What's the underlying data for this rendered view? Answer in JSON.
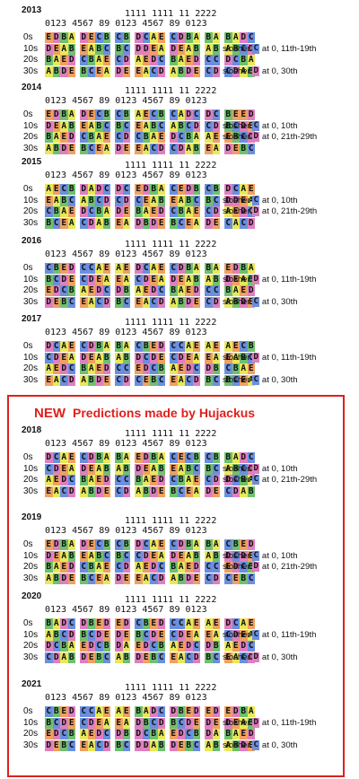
{
  "colors": {
    "A": "#e8e85a",
    "B": "#6fc06f",
    "C": "#6b8fe0",
    "D": "#e07fbf",
    "E": "#f0a060",
    "accent": "#e0201c"
  },
  "header": {
    "tens": "1111 1111 11 2222",
    "ones": "0123 4567 89 0123 4567 89 0123"
  },
  "row_labels": [
    "0s",
    "10s",
    "20s",
    "30s"
  ],
  "predictions": {
    "new_label": "NEW",
    "title": "Predictions made by Hujackus"
  },
  "years": [
    {
      "year": "2013",
      "rows": [
        "EDBA DECB CB DCAE CDBA BA BADC",
        "DEAB EABC BC DDEA DEAB AB ABCD",
        "BAED CBAE CD AEDC BAED CC DCBA",
        "ABDE BCEA DE EACD ABDE CD CDAB"
      ],
      "notes": [
        {
          "row": 1,
          "pre": "slosher",
          "key": "C",
          "post": "at 0, 11th-19th"
        },
        {
          "row": 3,
          "pre": "slosher",
          "key": "D",
          "post": "at 0, 30th"
        }
      ]
    },
    {
      "year": "2014",
      "rows": [
        "EDBA DECB CB AECB CADC DC BEED",
        "DEAB EABC BC EABC ABCD CD BCDE",
        "BAED CBAE CD CBAE DCBA AE EBCD",
        "ABDE BCEA DE EACD CDAB EA DEBC"
      ],
      "notes": [
        {
          "row": 1,
          "pre": "slosher",
          "key": "C",
          "post": "at 0, 10th"
        },
        {
          "row": 2,
          "pre": "slosher",
          "key": "D",
          "post": "at 0, 21th-29th"
        }
      ]
    },
    {
      "year": "2015",
      "rows": [
        "AECB DADC DC EDBA CEDB CB DCAE",
        "EABC ABCD CD CEAB EABC BC DDEA",
        "CBAE DCBA DE BAED CBAE CD AEDC",
        "BCEA CDAB EA DBDE BCEA DE CACD"
      ],
      "notes": [
        {
          "row": 1,
          "pre": "slosher",
          "key": "C",
          "post": "at 0, 10th"
        },
        {
          "row": 2,
          "pre": "slosher",
          "key": "D",
          "post": "at 0, 21th-29th"
        }
      ]
    },
    {
      "year": "2016",
      "rows": [
        "CBED CCAE AE DCAE CDBA BA EDBA",
        "BCDE CDEA EA CDEA DEAB AB DEAB",
        "EDCB AEDC DB AEDC BAED CC BAED",
        "DEBC EACD BC EACD ABDE CD ABDE"
      ],
      "notes": [
        {
          "row": 1,
          "pre": "slosher",
          "key": "D",
          "post": "at 0, 11th-19th"
        },
        {
          "row": 3,
          "pre": "slosher",
          "key": "C",
          "post": "at 0, 30th"
        }
      ]
    },
    {
      "year": "2017",
      "rows": [
        "DCAE CDBA BA CBED CCAE AE AECB",
        "CDEA DEAB AB DCDE CDEA EA EABC",
        "AEDC BAED CC EDCB AEDC DB CBAE",
        "EACD ABDE CD CEBC EACD BC BCEA"
      ],
      "notes": [
        {
          "row": 1,
          "pre": "slosher",
          "key": "D",
          "post": "at 0, 11th-19th"
        },
        {
          "row": 3,
          "pre": "slosher",
          "key": "C",
          "post": "at 0, 30th"
        }
      ]
    },
    {
      "year": "2018",
      "rows": [
        "DCAE CDBA BA EDBA CECB CB BADC",
        "CDEA DEAB AB DEAB EABC BC ABCD",
        "AEDC BAED CC BAED CBAE CD DCBA",
        "EACD ABDE CD ABDE BCEA DE CDAB"
      ],
      "notes": [
        {
          "row": 1,
          "pre": "slosher",
          "key": "D",
          "post": "at 0, 10th"
        },
        {
          "row": 2,
          "pre": "slosher",
          "key": "C",
          "post": "at 0, 21th-29th"
        }
      ]
    },
    {
      "year": "2019",
      "rows": [
        "EDBA DECB CB DCAE CDBA BA CBED",
        "DEAB EABC BC CDEA DEAB AB DCDE",
        "BAED CBAE CD AEDC BAED CC EDCB",
        "ABDE BCEA DE EACD ABDE CD CEBC"
      ],
      "notes": [
        {
          "row": 1,
          "pre": "slosher",
          "key": "C",
          "post": "at 0, 10th"
        },
        {
          "row": 2,
          "pre": "slosher",
          "key": "D",
          "post": "at 0, 21th-29th"
        }
      ]
    },
    {
      "year": "2020",
      "rows": [
        "BADC DBED ED CBED CCAE AE DCAE",
        "ABCD BCDE DE BCDE CDEA EA CDEA",
        "DCBA EDCB DA EDCB AEDC DB AEDC",
        "CDAB DEBC AB DEBC EACD BC EACD"
      ],
      "notes": [
        {
          "row": 1,
          "pre": "slosher",
          "key": "C",
          "post": "at 0, 11th-19th"
        },
        {
          "row": 3,
          "pre": "slosher",
          "key": "D",
          "post": "at 0, 30th"
        }
      ]
    },
    {
      "year": "2021",
      "rows": [
        "CBED CCAE AE BADC DBED ED EDBA",
        "BCDE CDEA EA DBCD BCDE DE DEAB",
        "EDCB AEDC DB DCBA EDCB DA BAED",
        "DEBC EACD BC DDAB DEBC AB ABDE"
      ],
      "notes": [
        {
          "row": 1,
          "pre": "slosher",
          "key": "D",
          "post": "at 0, 11th-19th"
        },
        {
          "row": 3,
          "pre": "slosher",
          "key": "C",
          "post": "at 0, 30th"
        }
      ]
    }
  ]
}
